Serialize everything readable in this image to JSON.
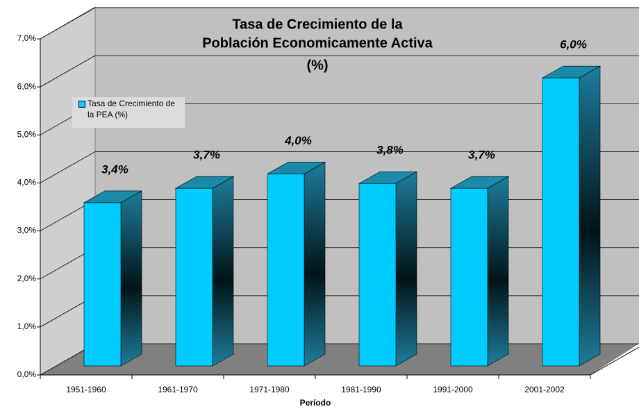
{
  "chart_data": {
    "type": "bar3d",
    "title": [
      "Tasa de Crecimiento de la",
      "Población Economicamente Activa",
      "(%)"
    ],
    "x_label": "Período",
    "categories": [
      "1951-1960",
      "1961-1970",
      "1971-1980",
      "1981-1990",
      "1991-2000",
      "2001-2002"
    ],
    "series": [
      {
        "name": "Tasa de Crecimiento de la PEA (%)",
        "color": "#00ccff",
        "values": [
          3.4,
          3.7,
          4.0,
          3.8,
          3.7,
          6.0
        ],
        "value_labels": [
          "3,4%",
          "3,7%",
          "4,0%",
          "3,8%",
          "3,7%",
          "6,0%"
        ]
      }
    ],
    "ylim": [
      0,
      7
    ],
    "yticks": [
      {
        "value": 0,
        "label": "0,0%"
      },
      {
        "value": 1,
        "label": "1,0%"
      },
      {
        "value": 2,
        "label": "2,0%"
      },
      {
        "value": 3,
        "label": "3,0%"
      },
      {
        "value": 4,
        "label": "4,0%"
      },
      {
        "value": 5,
        "label": "5,0%"
      },
      {
        "value": 6,
        "label": "6,0%"
      },
      {
        "value": 7,
        "label": "7,0%"
      }
    ],
    "grid": true,
    "legend": "upper left"
  }
}
